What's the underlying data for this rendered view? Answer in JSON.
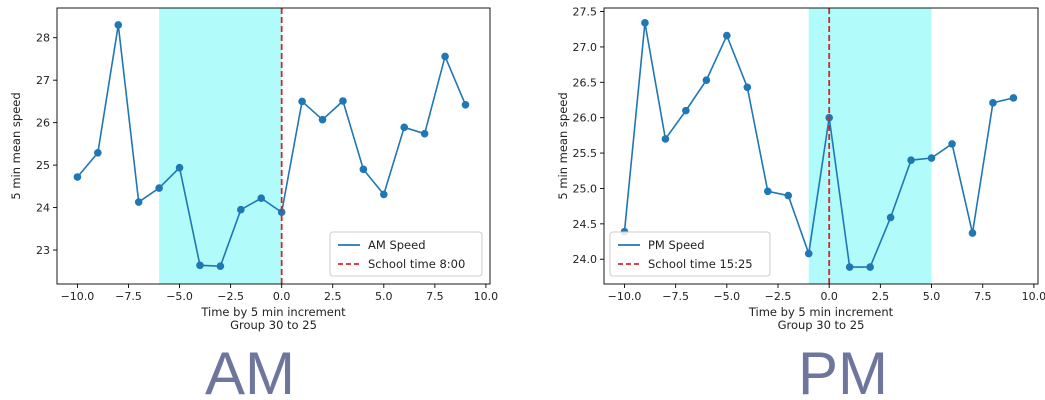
{
  "chart_data": [
    {
      "type": "line",
      "xlabel": "Time by 5 min increment",
      "xlabel2": "Group 30 to 25",
      "ylabel": "5 min mean speed",
      "xlim": [
        -11,
        10.2
      ],
      "ylim": [
        22.2,
        28.7
      ],
      "xticks": [
        -10.0,
        -7.5,
        -5.0,
        -2.5,
        0.0,
        2.5,
        5.0,
        7.5,
        10.0
      ],
      "xtick_labels": [
        "−10.0",
        "−7.5",
        "−5.0",
        "−2.5",
        "0.0",
        "2.5",
        "5.0",
        "7.5",
        "10.0"
      ],
      "yticks": [
        23,
        24,
        25,
        26,
        27,
        28
      ],
      "ytick_labels": [
        "23",
        "24",
        "25",
        "26",
        "27",
        "28"
      ],
      "shaded_span": [
        -6,
        0
      ],
      "vline_x": 0,
      "legend_position": "lower-right",
      "series": [
        {
          "name": "AM Speed",
          "x": [
            -10,
            -9,
            -8,
            -7,
            -6,
            -5,
            -4,
            -3,
            -2,
            -1,
            0,
            1,
            2,
            3,
            4,
            5,
            6,
            7,
            8,
            9
          ],
          "y": [
            24.72,
            25.29,
            28.3,
            24.13,
            24.46,
            24.94,
            22.64,
            22.62,
            23.95,
            24.22,
            23.89,
            26.5,
            26.07,
            26.51,
            24.9,
            24.31,
            25.89,
            25.74,
            27.56,
            26.42
          ]
        }
      ],
      "vline_name": "School time 8:00",
      "colors": {
        "line": "#1f77b4",
        "vline": "#d62728",
        "span": "#b1fbfb"
      }
    },
    {
      "type": "line",
      "xlabel": "Time by 5 min increment",
      "xlabel2": "Group 30 to 25",
      "ylabel": "5 min mean speed",
      "xlim": [
        -11,
        10.2
      ],
      "ylim": [
        23.65,
        27.55
      ],
      "xticks": [
        -10.0,
        -7.5,
        -5.0,
        -2.5,
        0.0,
        2.5,
        5.0,
        7.5,
        10.0
      ],
      "xtick_labels": [
        "−10.0",
        "−7.5",
        "−5.0",
        "−2.5",
        "0.0",
        "2.5",
        "5.0",
        "7.5",
        "10.0"
      ],
      "yticks": [
        24.0,
        24.5,
        25.0,
        25.5,
        26.0,
        26.5,
        27.0,
        27.5
      ],
      "ytick_labels": [
        "24.0",
        "24.5",
        "25.0",
        "25.5",
        "26.0",
        "26.5",
        "27.0",
        "27.5"
      ],
      "shaded_span": [
        -1,
        5
      ],
      "vline_x": 0,
      "legend_position": "lower-left",
      "series": [
        {
          "name": "PM Speed",
          "x": [
            -10,
            -9,
            -8,
            -7,
            -6,
            -5,
            -4,
            -3,
            -2,
            -1,
            0,
            1,
            2,
            3,
            4,
            5,
            6,
            7,
            8,
            9
          ],
          "y": [
            24.39,
            27.34,
            25.7,
            26.1,
            26.53,
            27.16,
            26.43,
            24.96,
            24.9,
            24.08,
            26.0,
            23.89,
            23.89,
            24.59,
            25.4,
            25.43,
            25.63,
            24.37,
            26.21,
            26.28
          ]
        }
      ],
      "vline_name": "School time 15:25",
      "colors": {
        "line": "#1f77b4",
        "vline": "#d62728",
        "span": "#b1fbfb"
      }
    }
  ],
  "labels": {
    "am": "AM",
    "pm": "PM"
  }
}
